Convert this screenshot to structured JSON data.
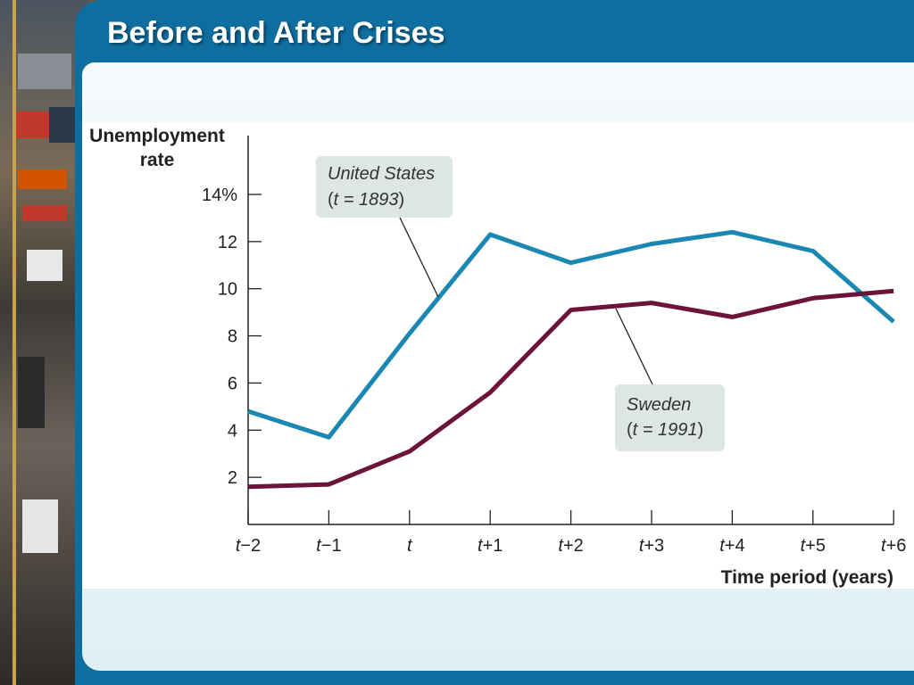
{
  "slide": {
    "title": "Before and After Crises"
  },
  "chart_data": {
    "type": "line",
    "title": "",
    "xlabel": "Time period (years)",
    "ylabel_line1": "Unemployment",
    "ylabel_line2": "rate",
    "categories": [
      "t−2",
      "t−1",
      "t",
      "t+1",
      "t+2",
      "t+3",
      "t+4",
      "t+5",
      "t+6"
    ],
    "y_ticks": [
      "2",
      "4",
      "6",
      "8",
      "10",
      "12",
      "14%"
    ],
    "y_tick_values": [
      2,
      4,
      6,
      8,
      10,
      12,
      14
    ],
    "ylim": [
      0,
      16.5
    ],
    "grid": false,
    "series": [
      {
        "name": "United States",
        "label_note_prefix": "(",
        "label_note_var": "t",
        "label_note_value": " = 1893",
        "label_note_suffix": ")",
        "color": "#1b87b3",
        "values": [
          4.8,
          3.7,
          8.1,
          12.3,
          11.1,
          11.9,
          12.4,
          11.6,
          8.6
        ]
      },
      {
        "name": "Sweden",
        "label_note_prefix": "(",
        "label_note_var": "t",
        "label_note_value": " = 1991",
        "label_note_suffix": ")",
        "color": "#6b1338",
        "values": [
          1.6,
          1.7,
          3.1,
          5.6,
          9.1,
          9.4,
          8.8,
          9.6,
          9.9
        ]
      }
    ]
  }
}
